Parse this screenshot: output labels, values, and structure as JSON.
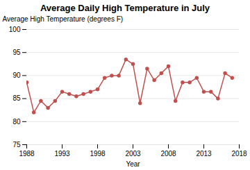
{
  "chart_data": {
    "type": "line",
    "title": "Average Daily High Temperature in July",
    "xlabel": "Year",
    "ylabel": "Average High Temperature (degrees F)",
    "x": [
      1988,
      1989,
      1990,
      1991,
      1992,
      1993,
      1994,
      1995,
      1996,
      1997,
      1998,
      1999,
      2000,
      2001,
      2002,
      2003,
      2004,
      2005,
      2006,
      2007,
      2008,
      2009,
      2010,
      2011,
      2012,
      2013,
      2014,
      2015,
      2016,
      2017
    ],
    "values": [
      88.5,
      82.0,
      84.5,
      83.0,
      84.5,
      86.5,
      86.0,
      85.5,
      86.0,
      86.5,
      87.0,
      89.5,
      90.0,
      90.0,
      93.5,
      92.5,
      84.0,
      91.5,
      89.0,
      90.5,
      92.0,
      84.5,
      88.5,
      88.5,
      89.5,
      86.5,
      86.5,
      85.0,
      90.5,
      89.5
    ],
    "color": "#c0504d",
    "marker": "circle",
    "xlim": [
      1988,
      2018
    ],
    "xticks": [
      1988,
      1993,
      1998,
      2003,
      2008,
      2013,
      2018
    ],
    "ylim": [
      75,
      100
    ],
    "yticks": [
      75,
      80,
      85,
      90,
      95,
      100
    ],
    "grid": true
  }
}
